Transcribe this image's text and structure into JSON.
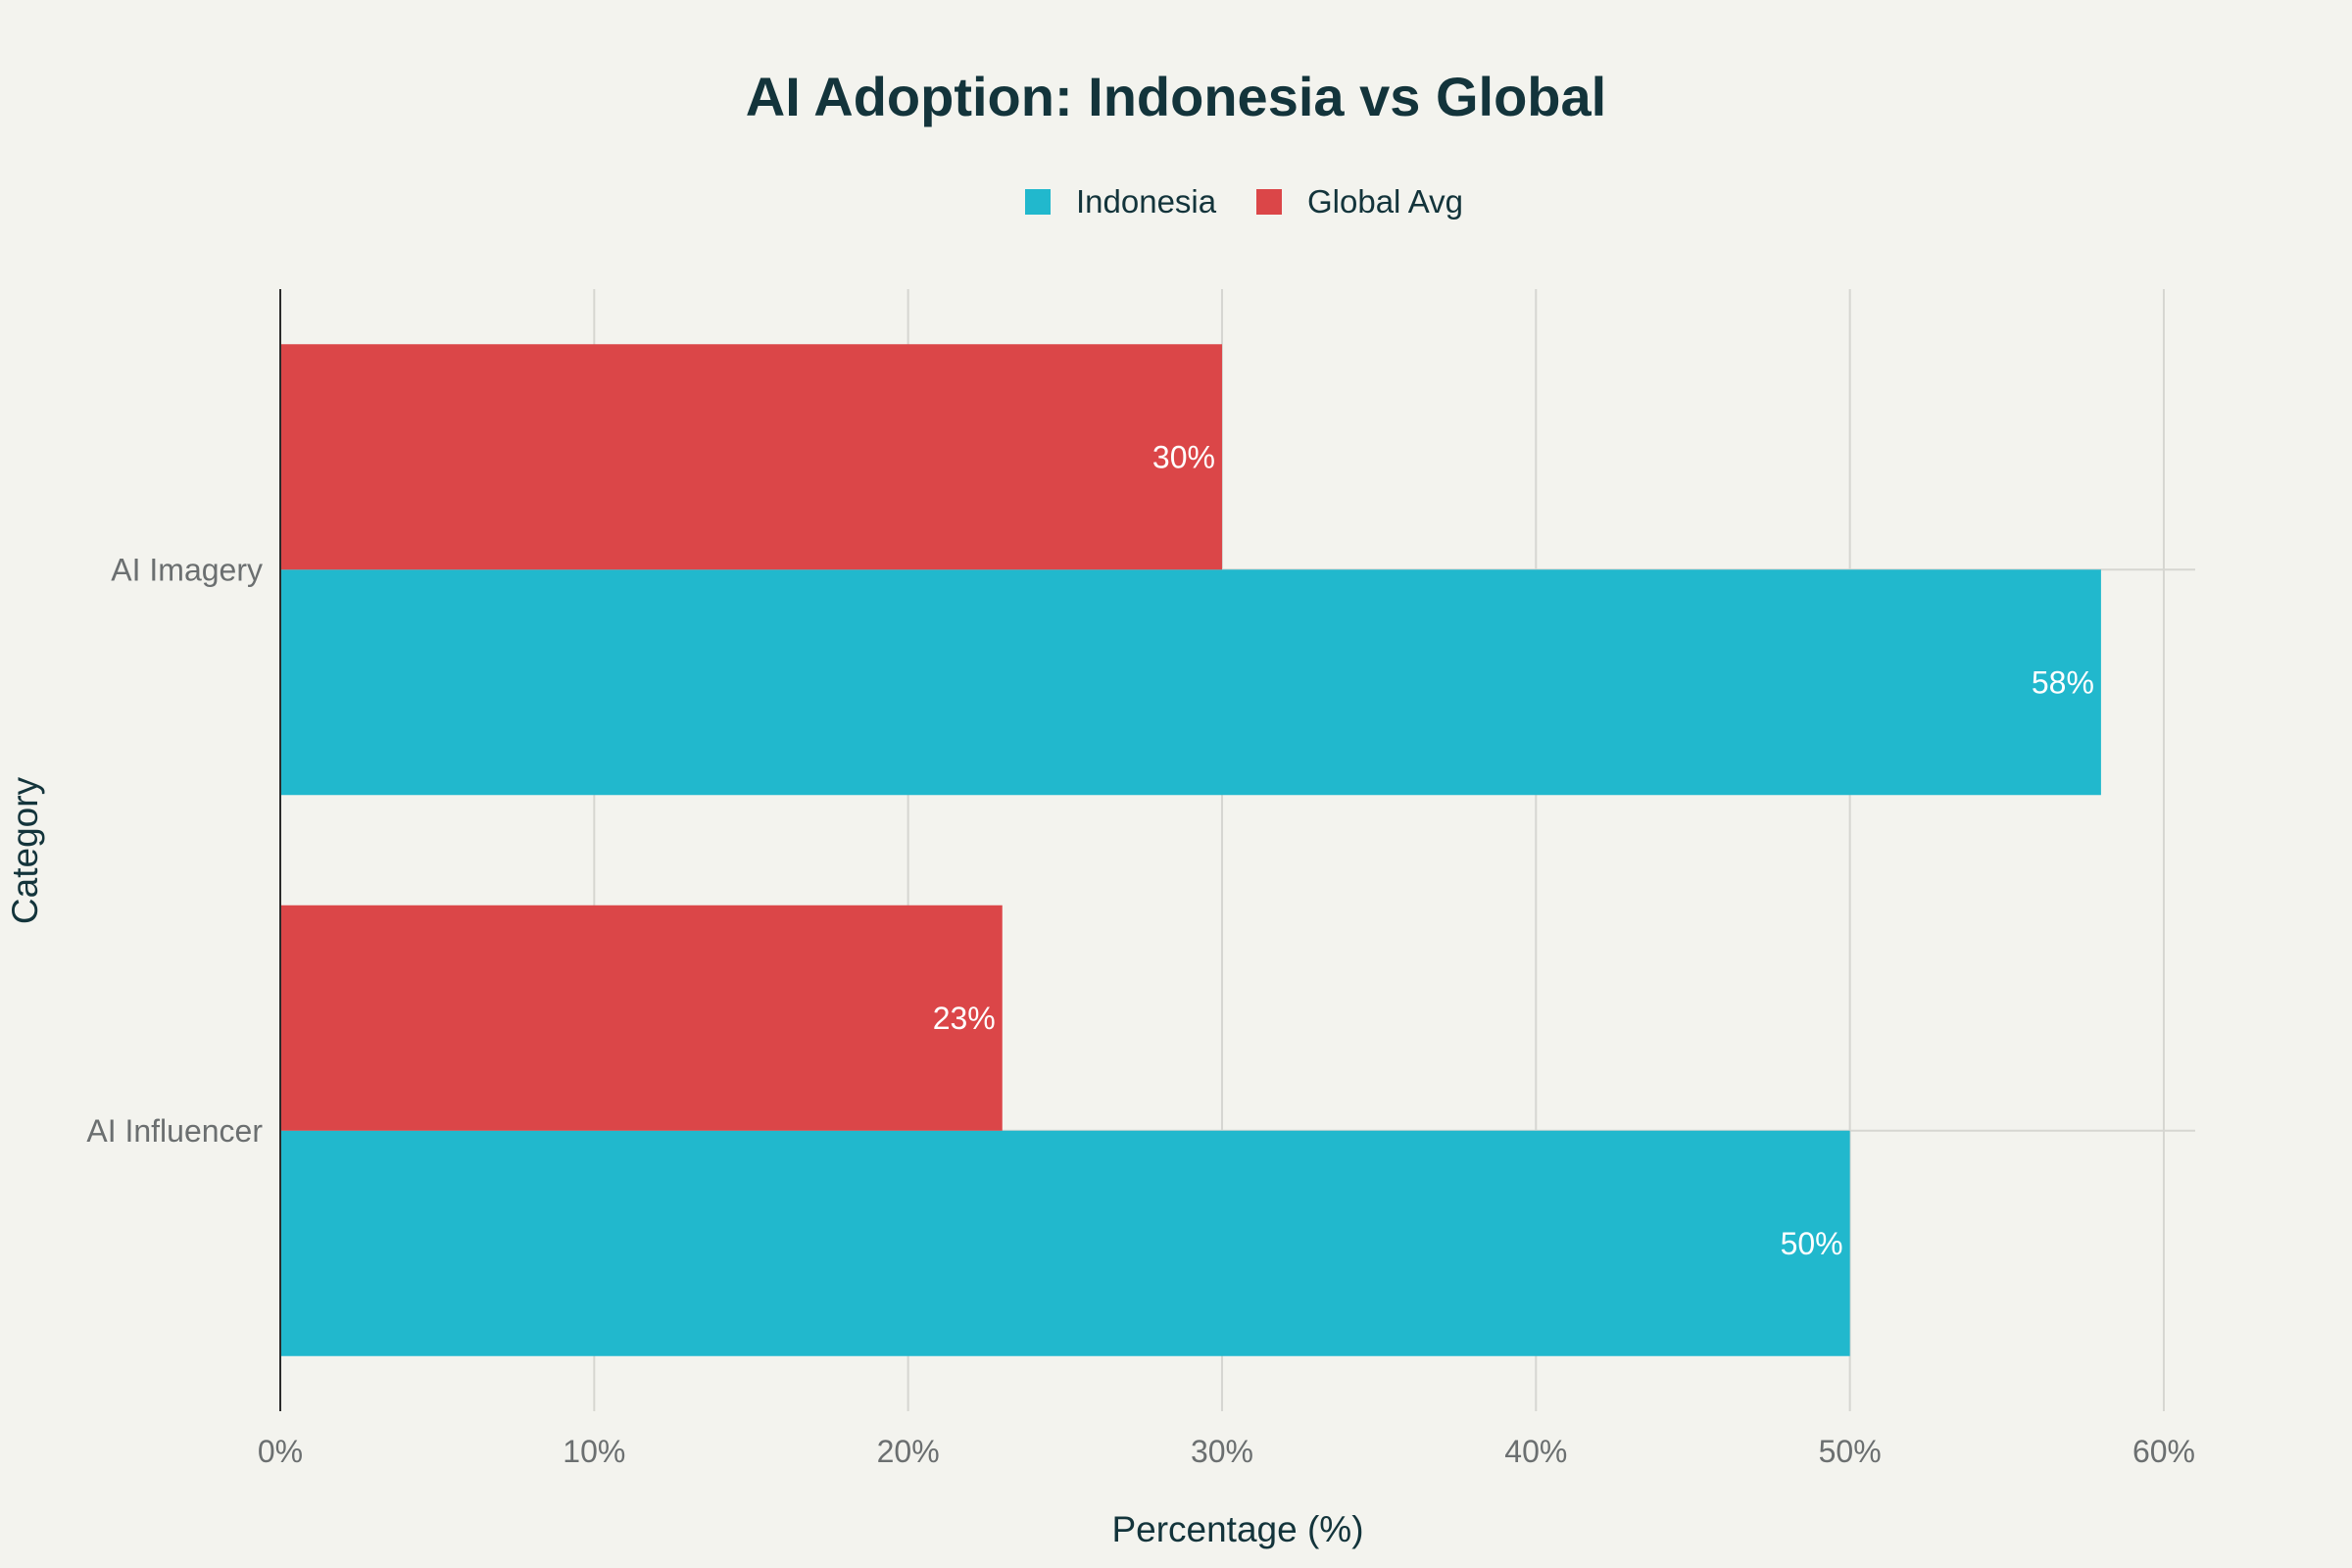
{
  "chart_data": {
    "type": "bar",
    "orientation": "horizontal",
    "title": "AI Adoption: Indonesia vs Global",
    "xlabel": "Percentage (%)",
    "ylabel": "Category",
    "categories": [
      "AI Imagery",
      "AI Influencer"
    ],
    "series": [
      {
        "name": "Indonesia",
        "color": "#21b8cd",
        "values": [
          58,
          50
        ],
        "labels": [
          "58%",
          "50%"
        ]
      },
      {
        "name": "Global Avg",
        "color": "#db4648",
        "values": [
          30,
          23
        ],
        "labels": [
          "30%",
          "23%"
        ]
      }
    ],
    "xlim": [
      0,
      61
    ],
    "xticks": [
      0,
      10,
      20,
      30,
      40,
      50,
      60
    ],
    "xtick_labels": [
      "0%",
      "10%",
      "20%",
      "30%",
      "40%",
      "50%",
      "60%"
    ],
    "grid": true,
    "legend_position": "top-center"
  }
}
